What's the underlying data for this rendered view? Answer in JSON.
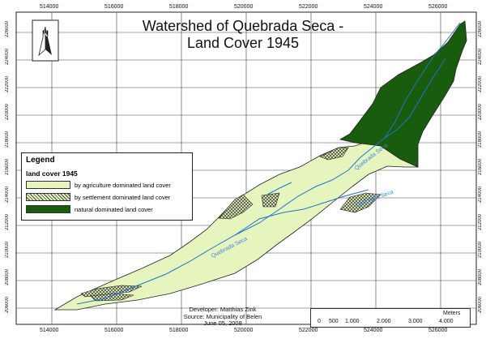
{
  "map": {
    "title_line1": "Watershed of Quebrada Seca -",
    "title_line2": "Land Cover 1945",
    "north_label": "N",
    "x_ticks": [
      "514000",
      "516000",
      "518000",
      "520000",
      "522000",
      "524000",
      "526000"
    ],
    "y_ticks": [
      "226000",
      "224000",
      "222000",
      "220000",
      "218000",
      "216000",
      "214000",
      "212000",
      "210000",
      "208000",
      "206000"
    ],
    "river_labels": [
      "Quebrada Seca",
      "Quebrada Seca",
      "Quebrada Seca"
    ],
    "colors": {
      "agriculture": "#e6f5bd",
      "natural": "#1a5c0e",
      "settlement_hatch": "#333333",
      "river": "#1e73d2",
      "river_label": "#3a86e8"
    }
  },
  "legend": {
    "title": "Legend",
    "subtitle": "land cover 1945",
    "items": [
      {
        "label": "by agriculture dominated land cover"
      },
      {
        "label": "by settlement dominated land cover"
      },
      {
        "label": "natural dominated land cover"
      }
    ]
  },
  "credits": {
    "developer": "Developer: Matthias Zink",
    "source": "Source: Municipality of Belen",
    "date": "June 05, 2008"
  },
  "scalebar": {
    "unit": "Meters",
    "ticks": [
      "0",
      "500",
      "1.000",
      "2.000",
      "3.000",
      "4.000"
    ]
  }
}
